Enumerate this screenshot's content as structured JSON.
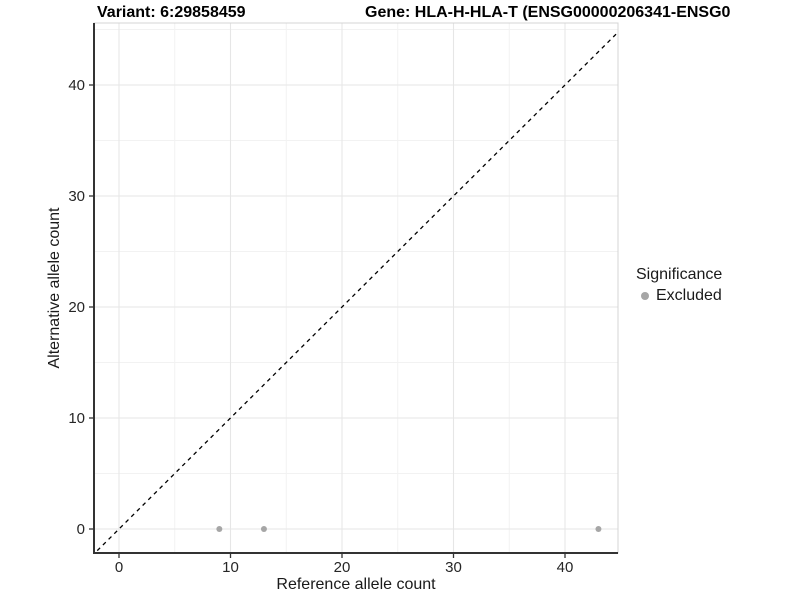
{
  "chart_data": {
    "type": "scatter",
    "title_left": "Variant: 6:29858459",
    "title_right": "Gene: HLA-H-HLA-T (ENSG00000206341-ENSG0",
    "xlabel": "Reference allele count",
    "ylabel": "Alternative allele count",
    "xlim": [
      -2.3,
      44.8
    ],
    "ylim": [
      -2.2,
      45.6
    ],
    "x_ticks": [
      0,
      10,
      20,
      30,
      40
    ],
    "y_ticks": [
      0,
      10,
      20,
      30,
      40
    ],
    "x_minor_ticks": [
      5,
      15,
      25,
      35,
      45
    ],
    "y_minor_ticks": [
      5,
      15,
      25,
      35,
      45
    ],
    "grid": true,
    "legend_position": "right",
    "legend_title": "Significance",
    "series": [
      {
        "name": "Excluded",
        "color": "#a6a6a6",
        "points": [
          {
            "x": 9,
            "y": 0
          },
          {
            "x": 13,
            "y": 0
          },
          {
            "x": 43,
            "y": 0
          }
        ]
      }
    ],
    "reference_line": {
      "kind": "identity",
      "style": "dashed",
      "color": "#000000"
    },
    "colors": {
      "background": "#ffffff",
      "panel_border": "#d4d4d4",
      "grid_major": "#e6e6e6",
      "grid_minor": "#f2f2f2",
      "axis_line": "#333333",
      "tick_label": "#262626",
      "point": "#a6a6a6"
    }
  }
}
